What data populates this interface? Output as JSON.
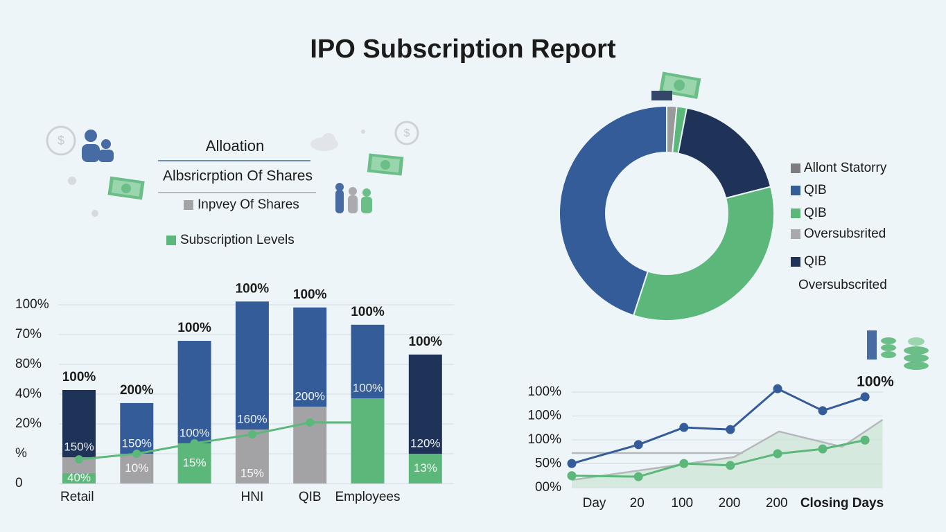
{
  "title": "IPO Subscription Report",
  "chart_data": [
    {
      "type": "bar",
      "stacked": true,
      "legend_title": "Alloation",
      "legend_subtitle": "Albsricrption Of Shares",
      "categories": [
        "Retail",
        null,
        null,
        "HNI",
        "QIB",
        "Employees",
        null
      ],
      "ylim": [
        0,
        6.3
      ],
      "yticks": [
        0,
        {
          "value": 1,
          "label": "%"
        },
        {
          "value": 2,
          "label": "20%"
        },
        {
          "value": 3,
          "label": "40%"
        },
        {
          "value": 4,
          "label": "80%"
        },
        {
          "value": 5,
          "label": "70%"
        },
        {
          "value": 6,
          "label": "100%"
        }
      ],
      "grid": true,
      "top_labels": [
        "100%",
        "200%",
        "100%",
        "100%",
        "100%",
        "100%",
        "100%"
      ],
      "series": [
        {
          "name": "Subscription Levels",
          "color": "#5cb87a",
          "values": [
            0.35,
            null,
            1.35,
            null,
            null,
            2.86,
            1.0
          ],
          "labels": [
            "40%",
            null,
            "15%",
            null,
            null,
            null,
            "13%"
          ]
        },
        {
          "name": "Inpvey Of Shares",
          "color": "#a3a3a6",
          "values": [
            0.53,
            1.0,
            null,
            1.81,
            2.58,
            null,
            null
          ],
          "labels": [
            null,
            "10%",
            null,
            "15%",
            null,
            null,
            null
          ]
        },
        {
          "color": "#345c99",
          "values": [
            null,
            1.7,
            3.44,
            4.3,
            3.33,
            2.47,
            null
          ],
          "labels": [
            null,
            "150%",
            "100%",
            "160%",
            "200%",
            "100%",
            null
          ]
        },
        {
          "color": "#1f3358",
          "values": [
            2.26,
            null,
            null,
            null,
            null,
            null,
            3.33
          ],
          "labels": [
            "150%",
            null,
            null,
            null,
            null,
            null,
            "120%"
          ]
        },
        {
          "type": "line",
          "color": "#5cb87a",
          "values": [
            0.81,
            1.0,
            1.35,
            1.65,
            2.05,
            2.05,
            null
          ]
        }
      ]
    },
    {
      "type": "pie",
      "donut": true,
      "values": [
        1.5,
        1.5,
        18,
        34,
        45
      ],
      "colors": [
        "#9a9a9a",
        "#5cb87a",
        "#1f3358",
        "#5cb87a",
        "#345c99"
      ],
      "legend_items": [
        {
          "label": "Allont Statorry",
          "color": "#7d7d80"
        },
        {
          "label": "QIB",
          "color": "#345c99"
        },
        {
          "label": "QIB",
          "color": "#5cb87a"
        },
        {
          "label": "Oversubsrited",
          "color": "#a9a9ab"
        },
        {
          "label": "QIB",
          "color": "#1f3358"
        },
        {
          "label": "Oversubscrited"
        }
      ]
    },
    {
      "type": "line",
      "annotation": "100%",
      "xlim": [
        0,
        6.9
      ],
      "ylim": [
        0,
        4.3
      ],
      "xticks": [
        {
          "value": 0.5,
          "label": "Day"
        },
        {
          "value": 1.45,
          "label": "20"
        },
        {
          "value": 2.45,
          "label": "100"
        },
        {
          "value": 3.5,
          "label": "200"
        },
        {
          "value": 4.55,
          "label": "200"
        },
        {
          "value": 6.0,
          "label": "Closing Days"
        }
      ],
      "yticks": [
        {
          "value": 0,
          "label": "00%"
        },
        {
          "value": 1,
          "label": "50%"
        },
        {
          "value": 2,
          "label": "100%"
        },
        {
          "value": 3,
          "label": "100%"
        },
        {
          "value": 4,
          "label": "100%"
        }
      ],
      "grid": true,
      "series": [
        {
          "color": "#b5b8bb",
          "area": "#cfe6d8",
          "x": [
            0,
            3.6,
            4.6,
            6,
            6.9
          ],
          "values": [
            0.32,
            1.28,
            2.35,
            1.71,
            2.84
          ]
        },
        {
          "color": "#b5b8bb",
          "x": [
            0,
            3.8
          ],
          "values": [
            1.45,
            1.45
          ]
        },
        {
          "color": "#345c99",
          "markers": true,
          "x": [
            0,
            1.48,
            2.49,
            3.52,
            4.57,
            5.57,
            6.51
          ],
          "values": [
            1.01,
            1.8,
            2.52,
            2.43,
            4.14,
            3.22,
            3.8
          ]
        },
        {
          "color": "#5cb87a",
          "markers": true,
          "x": [
            0,
            1.48,
            2.49,
            3.52,
            4.57,
            5.57,
            6.51
          ],
          "values": [
            0.5,
            0.46,
            1.01,
            0.93,
            1.42,
            1.62,
            1.99
          ]
        }
      ]
    }
  ]
}
